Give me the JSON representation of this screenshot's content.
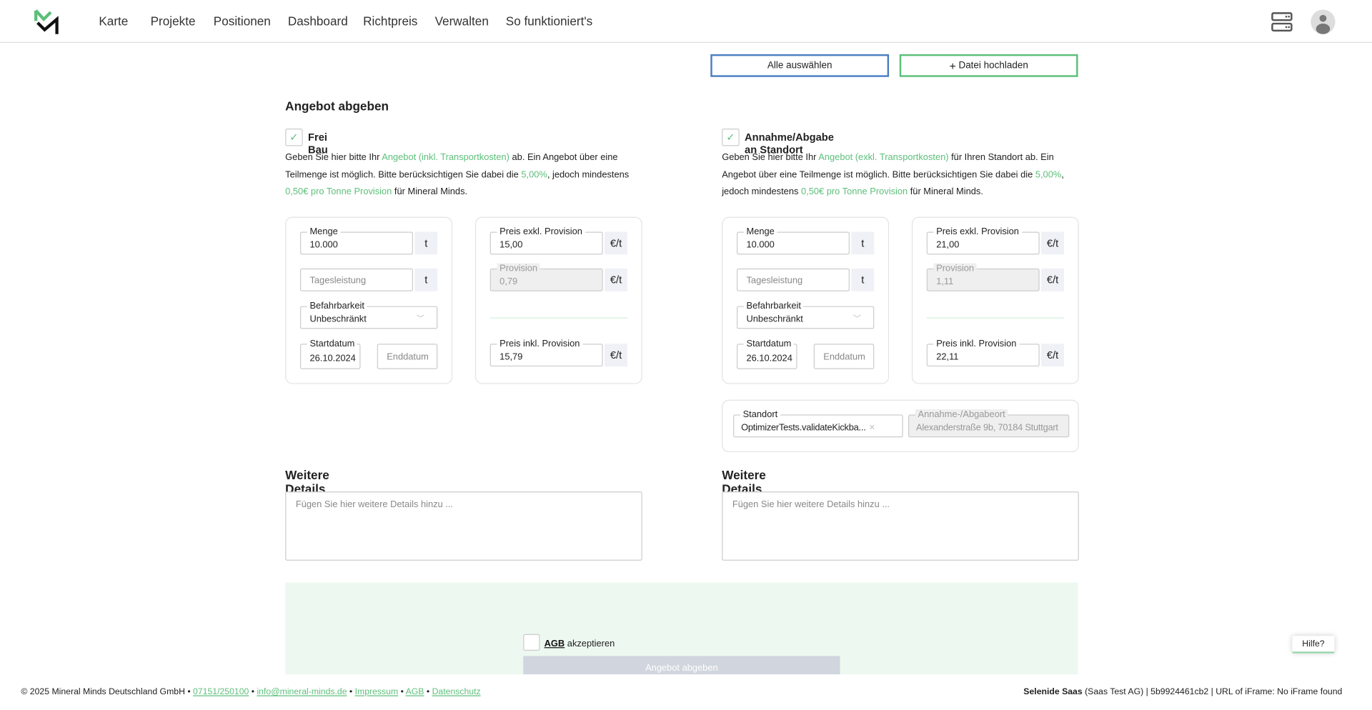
{
  "nav": {
    "items": [
      "Karte",
      "Projekte",
      "Positionen",
      "Dashboard",
      "Richtpreis",
      "Verwalten",
      "So funktioniert's"
    ]
  },
  "toolbar": {
    "select_all": "Alle auswählen",
    "upload": "Datei hochladen"
  },
  "title": "Angebot abgeben",
  "left": {
    "option": "Frei Bau",
    "desc": [
      "Geben Sie hier bitte Ihr ",
      "Angebot (inkl. Transportkosten)",
      " ab. Ein Angebot über eine Teilmenge ist möglich. Bitte berücksichtigen Sie dabei die ",
      "5,00%",
      ", jedoch mindestens ",
      "0,50€ pro Tonne Provision",
      " für Mineral Minds."
    ],
    "menge_label": "Menge",
    "menge": "10.000",
    "unit_t": "t",
    "tagesleistung_ph": "Tagesleistung",
    "befahrbarkeit_label": "Befahrbarkeit",
    "befahrbarkeit": "Unbeschränkt",
    "start_label": "Startdatum",
    "start": "26.10.2024",
    "end_ph": "Enddatum",
    "preis_exkl_label": "Preis exkl. Provision",
    "preis_exkl": "15,00",
    "provision_label": "Provision",
    "provision": "0,79",
    "preis_inkl_label": "Preis inkl. Provision",
    "preis_inkl": "15,79",
    "unit_eur": "€/t",
    "details_title": "Weitere Details",
    "details_ph": "Fügen Sie hier weitere Details hinzu ..."
  },
  "right": {
    "option": "Annahme/Abgabe an Standort",
    "desc": [
      "Geben Sie hier bitte Ihr ",
      "Angebot (exkl. Transportkosten)",
      " für Ihren Standort ab. Ein Angebot über eine Teilmenge ist möglich. Bitte berücksichtigen Sie dabei die ",
      "5,00%",
      ", jedoch mindestens ",
      "0,50€ pro Tonne Provision",
      " für Mineral Minds."
    ],
    "menge_label": "Menge",
    "menge": "10.000",
    "unit_t": "t",
    "tagesleistung_ph": "Tagesleistung",
    "befahrbarkeit_label": "Befahrbarkeit",
    "befahrbarkeit": "Unbeschränkt",
    "start_label": "Startdatum",
    "start": "26.10.2024",
    "end_ph": "Enddatum",
    "preis_exkl_label": "Preis exkl. Provision",
    "preis_exkl": "21,00",
    "provision_label": "Provision",
    "provision": "1,11",
    "preis_inkl_label": "Preis inkl. Provision",
    "preis_inkl": "22,11",
    "unit_eur": "€/t",
    "standort_label": "Standort",
    "standort": "OptimizerTests.validateKickba...",
    "ort_label": "Annahme-/Abgabeort",
    "ort": "Alexanderstraße 9b, 70184 Stuttgart",
    "details_title": "Weitere Details",
    "details_ph": "Fügen Sie hier weitere Details hinzu ..."
  },
  "submit": {
    "agb": "AGB",
    "accept": " akzeptieren",
    "button": "Angebot abgeben"
  },
  "help": "Hilfe?",
  "footer": {
    "copyright": "© 2025 Mineral Minds Deutschland GmbH • ",
    "phone": "07151/250100",
    "email": "info@mineral-minds.de",
    "impressum": "Impressum",
    "agb": "AGB",
    "datenschutz": "Datenschutz",
    "sep": " • ",
    "right_bold": "Selenide Saas",
    "right_rest": " (Saas Test AG) | 5b9924461cb2 | URL of iFrame: No iFrame found"
  },
  "colors": {
    "accent": "#5cbf7a",
    "blue": "#4a7fc1",
    "disabled_button": "#d1d5de",
    "panel": "#edf8f0"
  }
}
